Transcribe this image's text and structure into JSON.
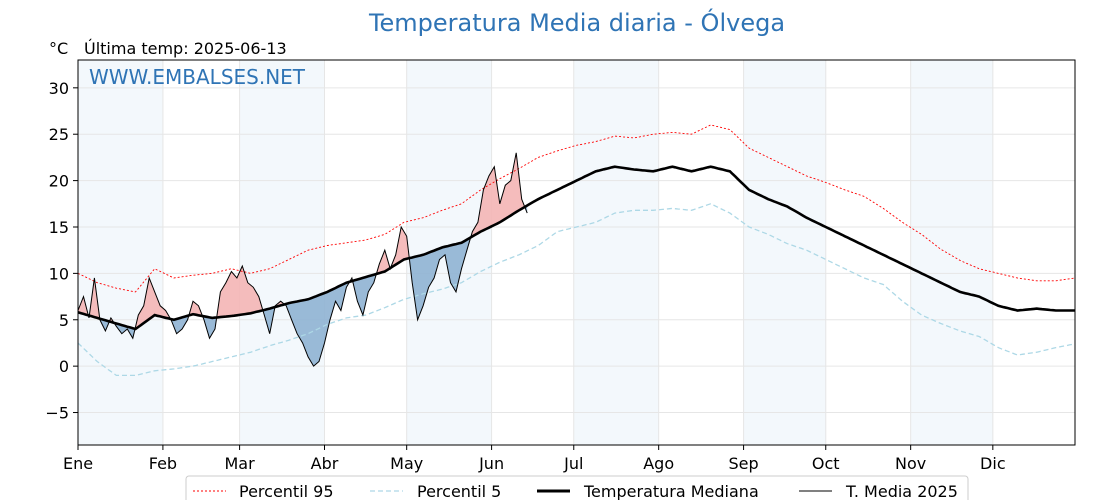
{
  "chart_data": {
    "type": "line",
    "title": "Temperatura Media diaria - Ólvega",
    "unit_label": "°C",
    "update_label": "Última temp: 2025-06-13",
    "watermark": "WWW.EMBALSES.NET",
    "x_months": [
      "Ene",
      "Feb",
      "Mar",
      "Abr",
      "May",
      "Jun",
      "Jul",
      "Ago",
      "Sep",
      "Oct",
      "Nov",
      "Dic"
    ],
    "month_start_days": [
      1,
      32,
      60,
      91,
      121,
      152,
      182,
      213,
      244,
      274,
      305,
      335
    ],
    "x_range": [
      1,
      365
    ],
    "ylim": [
      -8.5,
      33
    ],
    "y_ticks": [
      -5,
      0,
      5,
      10,
      15,
      20,
      25,
      30
    ],
    "y_tick_labels": [
      "−5",
      "0",
      "5",
      "10",
      "15",
      "20",
      "25",
      "30"
    ],
    "grid": true,
    "legend_position": "bottom",
    "series_keypoints": {
      "median": {
        "name": "Temperatura Mediana",
        "color": "#000000",
        "points": [
          [
            1,
            5.8
          ],
          [
            8,
            5.2
          ],
          [
            15,
            4.6
          ],
          [
            22,
            4.0
          ],
          [
            29,
            5.5
          ],
          [
            36,
            5.0
          ],
          [
            43,
            5.6
          ],
          [
            50,
            5.2
          ],
          [
            57,
            5.4
          ],
          [
            64,
            5.7
          ],
          [
            71,
            6.2
          ],
          [
            78,
            6.8
          ],
          [
            85,
            7.2
          ],
          [
            92,
            8.0
          ],
          [
            99,
            9.0
          ],
          [
            106,
            9.6
          ],
          [
            113,
            10.2
          ],
          [
            120,
            11.5
          ],
          [
            127,
            12.0
          ],
          [
            134,
            12.8
          ],
          [
            141,
            13.3
          ],
          [
            148,
            14.5
          ],
          [
            155,
            15.5
          ],
          [
            162,
            16.8
          ],
          [
            169,
            18.0
          ],
          [
            176,
            19.0
          ],
          [
            183,
            20.0
          ],
          [
            190,
            21.0
          ],
          [
            197,
            21.5
          ],
          [
            204,
            21.2
          ],
          [
            211,
            21.0
          ],
          [
            218,
            21.5
          ],
          [
            225,
            21.0
          ],
          [
            232,
            21.5
          ],
          [
            239,
            21.0
          ],
          [
            246,
            19.0
          ],
          [
            253,
            18.0
          ],
          [
            260,
            17.2
          ],
          [
            267,
            16.0
          ],
          [
            274,
            15.0
          ],
          [
            281,
            14.0
          ],
          [
            288,
            13.0
          ],
          [
            295,
            12.0
          ],
          [
            302,
            11.0
          ],
          [
            309,
            10.0
          ],
          [
            316,
            9.0
          ],
          [
            323,
            8.0
          ],
          [
            330,
            7.5
          ],
          [
            337,
            6.5
          ],
          [
            344,
            6.0
          ],
          [
            351,
            6.2
          ],
          [
            358,
            6.0
          ],
          [
            365,
            6.0
          ]
        ]
      },
      "p95": {
        "name": "Percentil 95",
        "color": "#ff0000",
        "points": [
          [
            1,
            10.0
          ],
          [
            8,
            9.0
          ],
          [
            15,
            8.4
          ],
          [
            22,
            8.0
          ],
          [
            29,
            10.5
          ],
          [
            36,
            9.5
          ],
          [
            43,
            9.8
          ],
          [
            50,
            10.0
          ],
          [
            57,
            10.5
          ],
          [
            64,
            10.0
          ],
          [
            71,
            10.5
          ],
          [
            78,
            11.5
          ],
          [
            85,
            12.5
          ],
          [
            92,
            13.0
          ],
          [
            99,
            13.3
          ],
          [
            106,
            13.6
          ],
          [
            113,
            14.2
          ],
          [
            120,
            15.5
          ],
          [
            127,
            16.0
          ],
          [
            134,
            16.8
          ],
          [
            141,
            17.5
          ],
          [
            148,
            19.0
          ],
          [
            155,
            20.2
          ],
          [
            162,
            21.3
          ],
          [
            169,
            22.5
          ],
          [
            176,
            23.2
          ],
          [
            183,
            23.8
          ],
          [
            190,
            24.2
          ],
          [
            197,
            24.8
          ],
          [
            204,
            24.6
          ],
          [
            211,
            25.0
          ],
          [
            218,
            25.2
          ],
          [
            225,
            25.0
          ],
          [
            232,
            26.0
          ],
          [
            239,
            25.5
          ],
          [
            246,
            23.5
          ],
          [
            253,
            22.5
          ],
          [
            260,
            21.5
          ],
          [
            267,
            20.5
          ],
          [
            274,
            19.8
          ],
          [
            281,
            19.0
          ],
          [
            288,
            18.3
          ],
          [
            295,
            17.0
          ],
          [
            302,
            15.5
          ],
          [
            309,
            14.2
          ],
          [
            316,
            12.6
          ],
          [
            323,
            11.4
          ],
          [
            330,
            10.5
          ],
          [
            337,
            10.0
          ],
          [
            344,
            9.5
          ],
          [
            351,
            9.2
          ],
          [
            358,
            9.2
          ],
          [
            365,
            9.5
          ]
        ]
      },
      "p5": {
        "name": "Percentil 5",
        "color": "#add8e6",
        "points": [
          [
            1,
            2.5
          ],
          [
            8,
            0.5
          ],
          [
            15,
            -1.0
          ],
          [
            22,
            -1.0
          ],
          [
            29,
            -0.5
          ],
          [
            36,
            -0.3
          ],
          [
            43,
            0.0
          ],
          [
            50,
            0.5
          ],
          [
            57,
            1.0
          ],
          [
            64,
            1.5
          ],
          [
            71,
            2.2
          ],
          [
            78,
            2.8
          ],
          [
            85,
            3.5
          ],
          [
            92,
            4.5
          ],
          [
            99,
            5.2
          ],
          [
            106,
            5.5
          ],
          [
            113,
            6.3
          ],
          [
            120,
            7.2
          ],
          [
            127,
            7.8
          ],
          [
            134,
            8.3
          ],
          [
            141,
            9.0
          ],
          [
            148,
            10.2
          ],
          [
            155,
            11.2
          ],
          [
            162,
            12.0
          ],
          [
            169,
            13.0
          ],
          [
            176,
            14.5
          ],
          [
            183,
            15.0
          ],
          [
            190,
            15.5
          ],
          [
            197,
            16.5
          ],
          [
            204,
            16.8
          ],
          [
            211,
            16.8
          ],
          [
            218,
            17.0
          ],
          [
            225,
            16.8
          ],
          [
            232,
            17.5
          ],
          [
            239,
            16.5
          ],
          [
            246,
            15.0
          ],
          [
            253,
            14.2
          ],
          [
            260,
            13.2
          ],
          [
            267,
            12.5
          ],
          [
            274,
            11.5
          ],
          [
            281,
            10.5
          ],
          [
            288,
            9.5
          ],
          [
            295,
            8.8
          ],
          [
            302,
            7.0
          ],
          [
            309,
            5.5
          ],
          [
            316,
            4.6
          ],
          [
            323,
            3.8
          ],
          [
            330,
            3.2
          ],
          [
            337,
            2.0
          ],
          [
            344,
            1.2
          ],
          [
            351,
            1.5
          ],
          [
            358,
            2.0
          ],
          [
            365,
            2.4
          ]
        ]
      },
      "t2025": {
        "name": "T. Media 2025",
        "color": "#000000",
        "points": [
          [
            1,
            6.0
          ],
          [
            3,
            7.5
          ],
          [
            5,
            5.2
          ],
          [
            7,
            9.5
          ],
          [
            9,
            5.0
          ],
          [
            11,
            3.8
          ],
          [
            13,
            5.2
          ],
          [
            15,
            4.3
          ],
          [
            17,
            3.5
          ],
          [
            19,
            4.0
          ],
          [
            21,
            3.0
          ],
          [
            23,
            5.5
          ],
          [
            25,
            6.5
          ],
          [
            27,
            9.5
          ],
          [
            29,
            8.0
          ],
          [
            31,
            6.5
          ],
          [
            33,
            6.0
          ],
          [
            35,
            5.0
          ],
          [
            37,
            3.5
          ],
          [
            39,
            4.0
          ],
          [
            41,
            5.0
          ],
          [
            43,
            7.0
          ],
          [
            45,
            6.5
          ],
          [
            47,
            5.0
          ],
          [
            49,
            3.0
          ],
          [
            51,
            4.0
          ],
          [
            53,
            8.0
          ],
          [
            55,
            9.0
          ],
          [
            57,
            10.2
          ],
          [
            59,
            9.5
          ],
          [
            61,
            10.8
          ],
          [
            63,
            9.0
          ],
          [
            65,
            8.5
          ],
          [
            67,
            7.5
          ],
          [
            69,
            5.5
          ],
          [
            71,
            3.5
          ],
          [
            73,
            6.5
          ],
          [
            75,
            7.0
          ],
          [
            77,
            6.5
          ],
          [
            79,
            5.0
          ],
          [
            81,
            3.5
          ],
          [
            83,
            2.5
          ],
          [
            85,
            1.0
          ],
          [
            87,
            0.0
          ],
          [
            89,
            0.5
          ],
          [
            91,
            2.5
          ],
          [
            93,
            5.0
          ],
          [
            95,
            7.0
          ],
          [
            97,
            6.0
          ],
          [
            99,
            8.5
          ],
          [
            101,
            9.5
          ],
          [
            103,
            7.0
          ],
          [
            105,
            5.5
          ],
          [
            107,
            8.0
          ],
          [
            109,
            9.0
          ],
          [
            111,
            11.0
          ],
          [
            113,
            12.5
          ],
          [
            115,
            10.5
          ],
          [
            117,
            12.0
          ],
          [
            119,
            15.0
          ],
          [
            121,
            14.0
          ],
          [
            123,
            9.0
          ],
          [
            125,
            5.0
          ],
          [
            127,
            6.5
          ],
          [
            129,
            8.5
          ],
          [
            131,
            9.5
          ],
          [
            133,
            11.5
          ],
          [
            135,
            12.0
          ],
          [
            137,
            9.0
          ],
          [
            139,
            8.0
          ],
          [
            141,
            10.5
          ],
          [
            143,
            12.5
          ],
          [
            145,
            14.5
          ],
          [
            147,
            15.5
          ],
          [
            149,
            19.0
          ],
          [
            151,
            20.5
          ],
          [
            153,
            21.5
          ],
          [
            155,
            17.5
          ],
          [
            157,
            19.5
          ],
          [
            159,
            20.0
          ],
          [
            161,
            23.0
          ],
          [
            163,
            18.0
          ],
          [
            165,
            16.5
          ]
        ]
      }
    }
  },
  "legend": [
    {
      "label": "Percentil 95",
      "style": "p95"
    },
    {
      "label": "Percentil 5",
      "style": "p5"
    },
    {
      "label": "Temperatura Mediana",
      "style": "median"
    },
    {
      "label": "T. Media 2025",
      "style": "t2025"
    }
  ]
}
